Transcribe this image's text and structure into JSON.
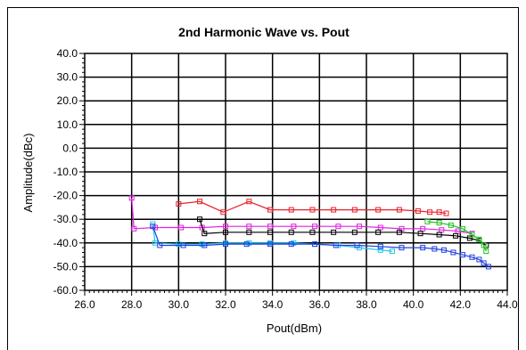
{
  "chart_data": {
    "type": "line",
    "title": "2nd Harmonic Wave vs. Pout",
    "xlabel": "Pout(dBm)",
    "ylabel": "Amplitude(dBc)",
    "xlim": [
      26.0,
      44.0
    ],
    "ylim": [
      -60.0,
      40.0
    ],
    "x_ticks": [
      "26.0",
      "28.0",
      "30.0",
      "32.0",
      "34.0",
      "36.0",
      "38.0",
      "40.0",
      "42.0",
      "44.0"
    ],
    "y_ticks": [
      "40.0",
      "30.0",
      "20.0",
      "10.0",
      "0.0",
      "-10.0",
      "-20.0",
      "-30.0",
      "-40.0",
      "-50.0",
      "-60.0"
    ],
    "grid": true,
    "legend": "none",
    "series": [
      {
        "color": "#e8202a",
        "marker": "square",
        "x": [
          30.0,
          30.9,
          31.9,
          33.0,
          33.9,
          34.8,
          35.7,
          36.6,
          37.5,
          38.5,
          39.4,
          40.2,
          40.7,
          41.1,
          41.4
        ],
        "y": [
          -23.5,
          -22.5,
          -27,
          -22.5,
          -26,
          -26,
          -26,
          -26,
          -26,
          -26,
          -26,
          -26.5,
          -27,
          -27,
          -27.5
        ]
      },
      {
        "color": "#e020e0",
        "marker": "square",
        "x": [
          28.0,
          28.1,
          29.0,
          30.1,
          31.0,
          32.0,
          33.0,
          33.9,
          34.9,
          35.8,
          36.8,
          37.7,
          38.6,
          39.5,
          40.4,
          41.2,
          41.9,
          42.5
        ],
        "y": [
          -21,
          -34,
          -33.5,
          -33.5,
          -33.5,
          -33,
          -33,
          -33,
          -33,
          -33,
          -33,
          -33,
          -33.5,
          -34,
          -34,
          -34.5,
          -35,
          -36
        ]
      },
      {
        "color": "#000000",
        "marker": "square",
        "x": [
          30.9,
          31.1,
          32.0,
          33.0,
          33.9,
          34.8,
          35.7,
          36.6,
          37.5,
          38.5,
          39.4,
          40.3,
          41.1,
          41.8,
          42.4,
          42.8,
          43.1
        ],
        "y": [
          -30,
          -36,
          -35.5,
          -35.5,
          -35.5,
          -35.5,
          -35.5,
          -35.5,
          -35.5,
          -35.5,
          -35.5,
          -36,
          -36.5,
          -37,
          -38,
          -39,
          -41
        ]
      },
      {
        "color": "#20c020",
        "marker": "square",
        "x": [
          40.6,
          41.1,
          41.6,
          42.1,
          42.5,
          42.8,
          43.0,
          43.1
        ],
        "y": [
          -31,
          -31.5,
          -32.5,
          -34,
          -36.5,
          -38.5,
          -41,
          -43.5
        ]
      },
      {
        "color": "#20c8e8",
        "marker": "square",
        "x": [
          28.9,
          29.0,
          30.0,
          31.0,
          32.0,
          33.0,
          33.9,
          34.9,
          35.8,
          36.8,
          37.7,
          38.6,
          39.1
        ],
        "y": [
          -32,
          -40,
          -40.5,
          -40.5,
          -40,
          -40,
          -40,
          -40,
          -40.5,
          -41,
          -42,
          -43,
          -43.5
        ]
      },
      {
        "color": "#2040e0",
        "marker": "square",
        "x": [
          28.9,
          29.2,
          30.2,
          31.1,
          32.0,
          32.9,
          33.9,
          34.8,
          35.8,
          36.7,
          37.6,
          38.6,
          39.5,
          40.4,
          40.9,
          41.3,
          41.7,
          42.1,
          42.5,
          42.8,
          43.0,
          43.2
        ],
        "y": [
          -33,
          -41,
          -41,
          -41,
          -40.5,
          -40.5,
          -40.5,
          -40.5,
          -40.5,
          -41,
          -41,
          -41.5,
          -42,
          -42,
          -42.5,
          -43,
          -44,
          -45,
          -46,
          -47,
          -48.5,
          -50
        ]
      }
    ]
  }
}
